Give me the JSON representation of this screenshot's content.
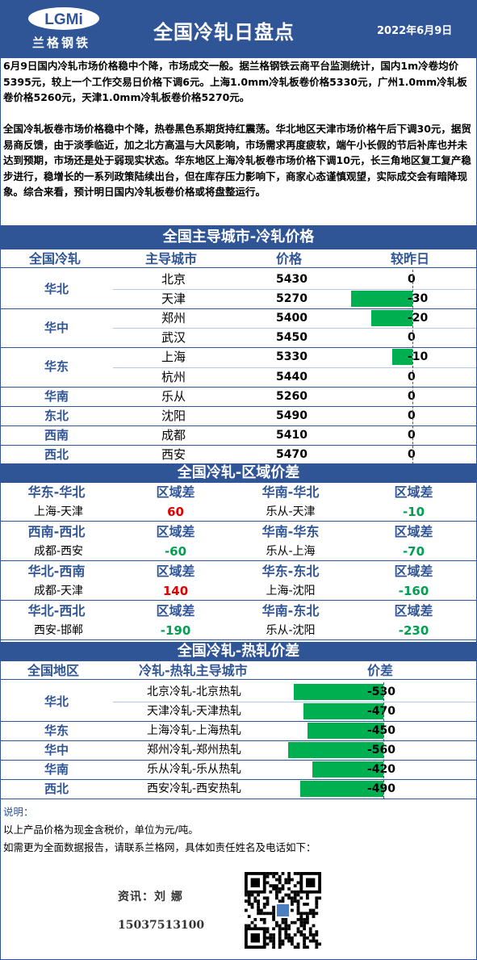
{
  "header": {
    "logo_mark": "LGMi",
    "logo_text": "兰格钢铁",
    "title": "全国冷轧日盘点",
    "date": "2022年6月9日"
  },
  "summary": {
    "p1": "6月9日国内冷轧市场价格稳中个降，市场成交一般。据兰格钢铁云商平台监测统计，国内1m冷卷均价5395元，较上一个工作交易日价格下调6元。上海1.0mm冷轧板卷价格5330元，广州1.0mm冷轧板卷价格5260元，天津1.0mm冷轧板卷价格5270元。",
    "p2": "全国冷轧板卷市场价格稳中个降，热卷黑色系期货持红震荡。华北地区天津市场价格午后下调30元，据贸易商反馈，由于淡季临近，加之北方高温与大风影响，市场需求再度疲软，端午小长假的节后补库也并未达到预期，市场还是处于弱现实状态。华东地区上海冷轧板卷市场价格下调10元，长三角地区复工复产稳步进行，稳增长的一系列政策陆续出台，但在库存压力影响下，商家心态谨慎观望，实际成交会有暗降现象。综合来看，预计明日国内冷轧板卷价格或将盘整运行。"
  },
  "price_section": {
    "title": "全国主导城市-冷轧价格",
    "headers": [
      "全国冷轧",
      "主导城市",
      "价格",
      "较昨日"
    ],
    "groups": [
      {
        "region": "华北",
        "rows": [
          {
            "city": "北京",
            "price": "5430",
            "change": 0
          },
          {
            "city": "天津",
            "price": "5270",
            "change": -30
          }
        ]
      },
      {
        "region": "华中",
        "rows": [
          {
            "city": "郑州",
            "price": "5400",
            "change": -20
          },
          {
            "city": "武汉",
            "price": "5450",
            "change": 0
          }
        ]
      },
      {
        "region": "华东",
        "rows": [
          {
            "city": "上海",
            "price": "5330",
            "change": -10
          },
          {
            "city": "杭州",
            "price": "5440",
            "change": 0
          }
        ]
      },
      {
        "region": "华南",
        "rows": [
          {
            "city": "乐从",
            "price": "5260",
            "change": 0
          }
        ]
      },
      {
        "region": "东北",
        "rows": [
          {
            "city": "沈阳",
            "price": "5490",
            "change": 0
          }
        ]
      },
      {
        "region": "西南",
        "rows": [
          {
            "city": "成都",
            "price": "5410",
            "change": 0
          }
        ]
      },
      {
        "region": "西北",
        "rows": [
          {
            "city": "西安",
            "price": "5470",
            "change": 0
          }
        ]
      }
    ]
  },
  "regional_section": {
    "title": "全国冷轧-区域价差",
    "diff_label": "区域差",
    "rows": [
      {
        "left": {
          "pair": "华东-华北",
          "cities": "上海-天津",
          "value": "60",
          "sign": "pos"
        },
        "right": {
          "pair": "华南-华北",
          "cities": "乐从-天津",
          "value": "-10",
          "sign": "neg"
        }
      },
      {
        "left": {
          "pair": "西南-西北",
          "cities": "成都-西安",
          "value": "-60",
          "sign": "neg"
        },
        "right": {
          "pair": "华南-华东",
          "cities": "乐从-上海",
          "value": "-70",
          "sign": "neg"
        }
      },
      {
        "left": {
          "pair": "华北-西南",
          "cities": "成都-天津",
          "value": "140",
          "sign": "pos"
        },
        "right": {
          "pair": "华东-东北",
          "cities": "上海-沈阳",
          "value": "-160",
          "sign": "neg"
        }
      },
      {
        "left": {
          "pair": "华北-西北",
          "cities": "西安-邯郸",
          "value": "-190",
          "sign": "neg"
        },
        "right": {
          "pair": "华南-东北",
          "cities": "乐从-沈阳",
          "value": "-230",
          "sign": "neg"
        }
      }
    ]
  },
  "hotcold_section": {
    "title": "全国冷轧-热轧价差",
    "headers": [
      "全国地区",
      "冷轧-热轧主导城市",
      "价差"
    ],
    "groups": [
      {
        "region": "华北",
        "rows": [
          {
            "city": "北京冷轧-北京热轧",
            "value": -530
          },
          {
            "city": "天津冷轧-天津热轧",
            "value": -470
          }
        ]
      },
      {
        "region": "华东",
        "rows": [
          {
            "city": "上海冷轧-上海热轧",
            "value": -450
          }
        ]
      },
      {
        "region": "华中",
        "rows": [
          {
            "city": "郑州冷轧-郑州热轧",
            "value": -560
          }
        ]
      },
      {
        "region": "华南",
        "rows": [
          {
            "city": "乐从冷轧-乐从热轧",
            "value": -420
          }
        ]
      },
      {
        "region": "西北",
        "rows": [
          {
            "city": "西安冷轧-西安热轧",
            "value": -490
          }
        ]
      }
    ]
  },
  "notes": {
    "label": "说明：",
    "line1": "以上产品价格为现金含税价，单位为元/吨。",
    "line2": "如需更为全面数据报告，请联系兰格网，具体如责任姓名及电话如下：",
    "contact_name": "资讯：刘 娜",
    "contact_phone": "15037513100"
  },
  "colors": {
    "brand": "#2f5597",
    "bar": "#00b050",
    "positive": "#e00000",
    "negative": "#00a050"
  }
}
